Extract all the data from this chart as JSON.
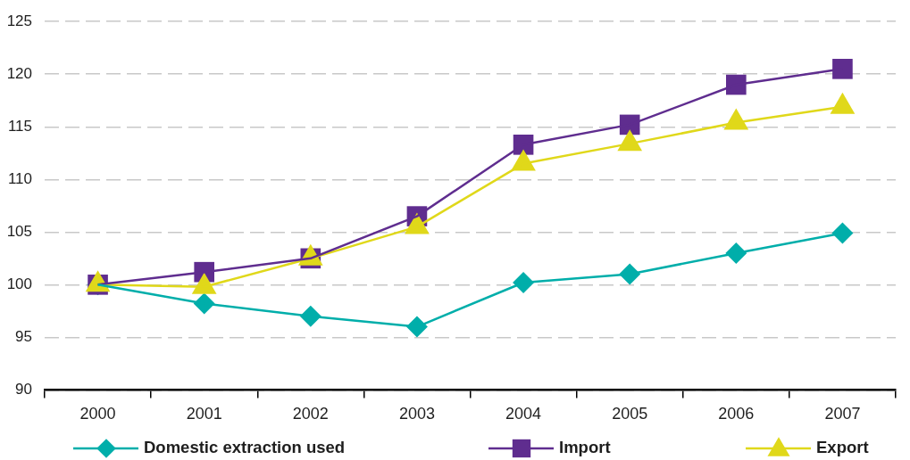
{
  "chart_data": {
    "type": "line",
    "categories": [
      "2000",
      "2001",
      "2002",
      "2003",
      "2004",
      "2005",
      "2006",
      "2007"
    ],
    "series": [
      {
        "name": "Domestic extraction used",
        "color": "#00aeaa",
        "marker": "diamond",
        "values": [
          100,
          98.2,
          97,
          96,
          100.2,
          101,
          103,
          104.9
        ]
      },
      {
        "name": "Import",
        "color": "#5f2d8f",
        "marker": "square",
        "values": [
          100,
          101.2,
          102.5,
          106.5,
          113.3,
          115.2,
          119,
          120.5
        ]
      },
      {
        "name": "Export",
        "color": "#e0d81a",
        "marker": "triangle",
        "values": [
          100,
          99.8,
          102.5,
          105.5,
          111.5,
          113.4,
          115.4,
          116.9
        ]
      }
    ],
    "ylim": [
      90,
      125
    ],
    "yticks": [
      90,
      95,
      100,
      105,
      110,
      115,
      120,
      125
    ],
    "grid": "y",
    "legend": "bottom",
    "line_style": "solid"
  }
}
